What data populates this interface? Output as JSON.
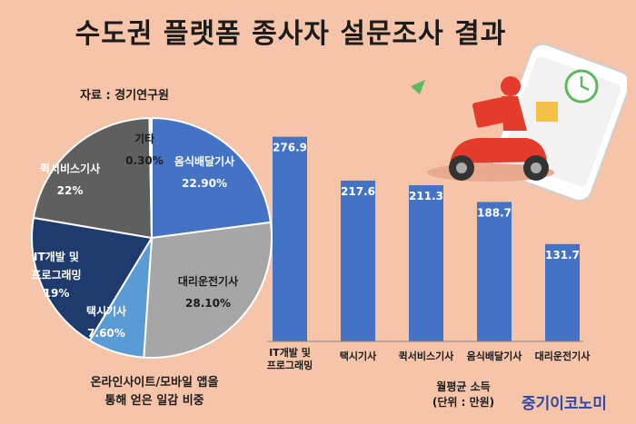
{
  "header": {
    "title": "수도권 플랫폼 종사자 설문조사 결과",
    "source": "자료 : 경기연구원"
  },
  "footer": {
    "pie_caption_line1": "온라인사이트/모바일 앱을",
    "pie_caption_line2": "통해 얻은 일감 비중",
    "bar_caption_line1": "월평균 소득",
    "bar_caption_line2": "(단위 : 만원)",
    "brand": "중기이코노미"
  },
  "colors": {
    "background": "#f6c4a9",
    "bar": "#4472c4",
    "pie": [
      "#4472c4",
      "#a6a6a6",
      "#5b9bd5",
      "#1f3b6e",
      "#5f5f5f",
      "#c9c9c9"
    ]
  },
  "chart_data": [
    {
      "type": "pie",
      "categories": [
        "음식배달기사",
        "대리운전기사",
        "택시기사",
        "IT개발 및 프로그래밍",
        "퀵서비스기사",
        "기타"
      ],
      "labels": [
        "22.90%",
        "28.10%",
        "7.60%",
        "19%",
        "22%",
        "0.30%"
      ],
      "values": [
        22.9,
        28.1,
        7.6,
        19,
        22,
        0.3
      ]
    },
    {
      "type": "bar",
      "categories": [
        "IT개발 및 프로그래밍",
        "택시기사",
        "퀵서비스기사",
        "음식배달기사",
        "대리운전기사"
      ],
      "values": [
        276.9,
        217.6,
        211.3,
        188.7,
        131.7
      ],
      "labels": [
        "276.9",
        "217.6",
        "211.3",
        "188.7",
        "131.7"
      ],
      "ylim": [
        0,
        290
      ]
    }
  ]
}
